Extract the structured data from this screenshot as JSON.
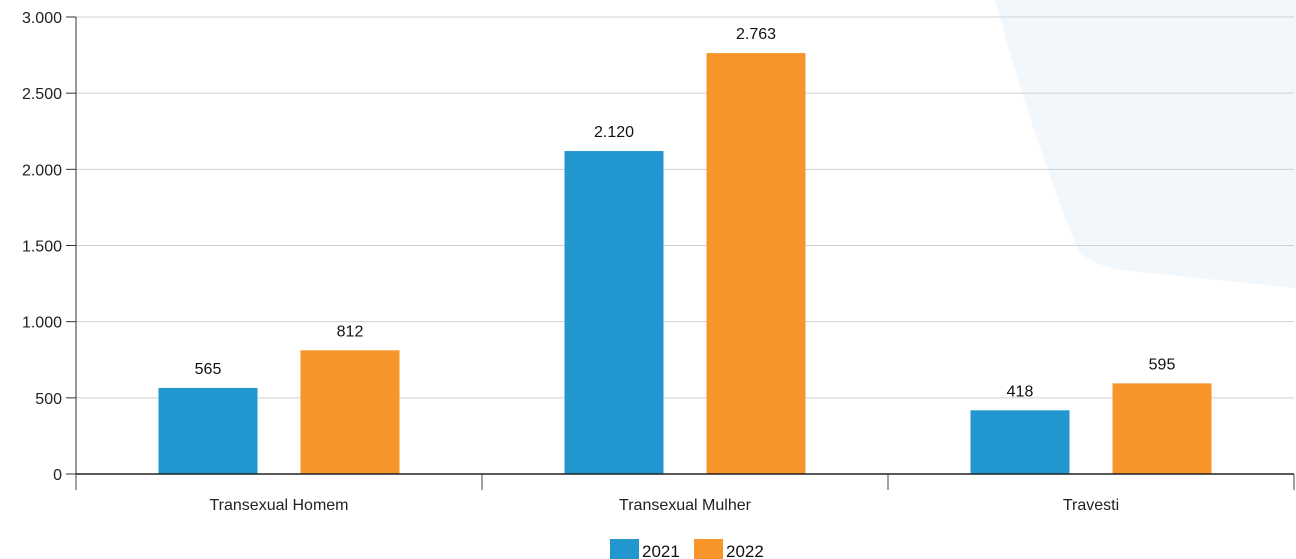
{
  "chart_data": {
    "type": "bar",
    "categories": [
      "Transexual Homem",
      "Transexual Mulher",
      "Travesti"
    ],
    "series": [
      {
        "name": "2021",
        "values": [
          565,
          2120,
          418
        ],
        "labels": [
          "565",
          "2.120",
          "418"
        ],
        "color": "#2196cf"
      },
      {
        "name": "2022",
        "values": [
          812,
          2763,
          595
        ],
        "labels": [
          "812",
          "2.763",
          "595"
        ],
        "color": "#f7952a"
      }
    ],
    "ylim": [
      0,
      3000
    ],
    "yticks": [
      0,
      500,
      1000,
      1500,
      2000,
      2500,
      3000
    ],
    "ytick_labels": [
      "0",
      "500",
      "1.000",
      "1.500",
      "2.000",
      "2.500",
      "3.000"
    ],
    "title": "",
    "xlabel": "",
    "ylabel": "",
    "grid": true,
    "legend_position": "bottom-center",
    "background_shape_color": "#f2f7fc"
  }
}
